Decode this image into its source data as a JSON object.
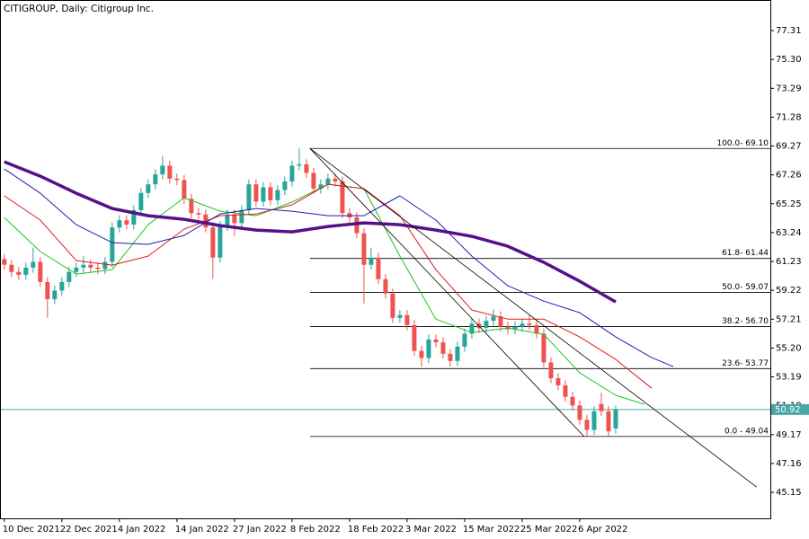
{
  "chart_data": {
    "type": "candlestick",
    "title": "CITIGROUP, Daily: Citigroup Inc.",
    "categories": [
      "10 Dec 2021",
      null,
      null,
      null,
      null,
      null,
      null,
      null,
      "22 Dec 2021",
      null,
      null,
      null,
      null,
      null,
      null,
      null,
      "4 Jan 2022",
      null,
      null,
      null,
      null,
      null,
      null,
      null,
      "14 Jan 2022",
      null,
      null,
      null,
      null,
      null,
      null,
      null,
      "27 Jan 2022",
      null,
      null,
      null,
      null,
      null,
      null,
      null,
      "8 Feb 2022",
      null,
      null,
      null,
      null,
      null,
      null,
      null,
      "18 Feb 2022",
      null,
      null,
      null,
      null,
      null,
      null,
      null,
      "3 Mar 2022",
      null,
      null,
      null,
      null,
      null,
      null,
      null,
      "15 Mar 2022",
      null,
      null,
      null,
      null,
      null,
      null,
      null,
      "25 Mar 2022",
      null,
      null,
      null,
      null,
      null,
      null,
      null,
      "6 Apr 2022",
      null,
      null,
      null,
      null,
      null
    ],
    "open": [
      61.4,
      61.0,
      60.5,
      60.3,
      60.8,
      61.2,
      59.8,
      58.6,
      59.2,
      59.8,
      60.5,
      60.8,
      61.0,
      60.8,
      60.7,
      61.2,
      63.6,
      64.1,
      63.8,
      64.8,
      66.0,
      66.6,
      67.3,
      67.9,
      67.0,
      66.9,
      65.6,
      64.6,
      64.5,
      63.6,
      61.5,
      63.7,
      64.5,
      63.9,
      64.8,
      66.6,
      65.4,
      66.4,
      65.5,
      66.2,
      66.8,
      67.9,
      68.0,
      67.4,
      66.3,
      66.6,
      67.0,
      66.8,
      64.6,
      64.3,
      63.2,
      61.0,
      61.5,
      60.0,
      59.0,
      57.3,
      57.5,
      56.8,
      55.0,
      54.5,
      55.8,
      55.6,
      54.8,
      54.3,
      55.3,
      56.2,
      56.9,
      56.6,
      57.1,
      57.4,
      56.7,
      56.5,
      56.7,
      56.9,
      56.8,
      56.2,
      54.2,
      53.1,
      52.6,
      51.8,
      51.2,
      50.2,
      49.5,
      51.3,
      50.8,
      49.6
    ],
    "high": [
      61.75,
      61.35,
      60.85,
      61.15,
      62.2,
      61.55,
      60.15,
      59.55,
      60.15,
      60.85,
      61.15,
      61.6,
      61.35,
      61.15,
      61.55,
      63.95,
      64.45,
      64.45,
      65.15,
      66.35,
      66.95,
      67.65,
      68.6,
      68.25,
      67.35,
      67.25,
      65.95,
      64.95,
      64.85,
      63.95,
      64.05,
      64.85,
      64.85,
      65.15,
      66.95,
      66.95,
      66.75,
      66.75,
      66.55,
      67.15,
      68.25,
      69.1,
      68.35,
      67.75,
      66.95,
      67.35,
      67.35,
      67.15,
      64.95,
      64.65,
      63.55,
      62.2,
      61.85,
      60.35,
      59.35,
      57.85,
      57.85,
      57.15,
      55.35,
      56.15,
      56.15,
      55.95,
      55.15,
      55.65,
      56.55,
      57.25,
      57.25,
      57.45,
      57.9,
      57.75,
      57.05,
      57.05,
      57.25,
      57.5,
      57.15,
      56.55,
      54.55,
      53.45,
      52.95,
      52.15,
      51.55,
      50.55,
      51.15,
      52.1,
      51.15,
      51.2
    ],
    "low": [
      60.65,
      60.15,
      59.95,
      59.95,
      60.45,
      59.45,
      57.3,
      58.25,
      58.85,
      59.45,
      60.15,
      60.45,
      60.45,
      60.35,
      60.35,
      60.85,
      63.25,
      63.45,
      63.45,
      64.45,
      65.65,
      66.25,
      66.95,
      66.65,
      66.55,
      65.25,
      64.25,
      64.15,
      63.25,
      60.0,
      61.15,
      63.35,
      63.0,
      63.55,
      64.45,
      65.05,
      65.05,
      65.15,
      65.15,
      65.85,
      66.45,
      67.55,
      67.05,
      65.95,
      65.95,
      66.25,
      66.45,
      64.25,
      63.95,
      62.85,
      58.3,
      60.65,
      59.65,
      58.65,
      56.95,
      56.95,
      56.45,
      54.65,
      53.9,
      54.15,
      55.25,
      54.45,
      53.9,
      53.95,
      54.95,
      55.85,
      56.25,
      56.25,
      56.75,
      56.35,
      56.15,
      56.15,
      56.35,
      56.45,
      55.85,
      53.85,
      52.75,
      52.25,
      51.45,
      50.85,
      49.85,
      49.04,
      49.15,
      50.45,
      49.05,
      49.25
    ],
    "close": [
      61.0,
      60.5,
      60.3,
      60.8,
      61.2,
      59.8,
      58.6,
      59.2,
      59.8,
      60.5,
      60.8,
      61.0,
      60.8,
      60.7,
      61.2,
      63.6,
      64.1,
      63.8,
      64.8,
      66.0,
      66.6,
      67.3,
      67.9,
      67.0,
      66.9,
      65.6,
      64.6,
      64.5,
      63.6,
      61.5,
      63.7,
      64.5,
      63.9,
      64.8,
      66.6,
      65.4,
      66.4,
      65.5,
      66.2,
      66.8,
      67.9,
      68.0,
      67.4,
      66.3,
      66.6,
      67.0,
      66.8,
      64.6,
      64.3,
      63.2,
      61.0,
      61.5,
      60.0,
      59.0,
      57.3,
      57.5,
      56.8,
      55.0,
      54.5,
      55.8,
      55.6,
      54.8,
      54.3,
      55.3,
      56.2,
      56.9,
      56.6,
      57.1,
      57.4,
      56.7,
      56.5,
      56.7,
      56.9,
      56.8,
      56.2,
      54.2,
      53.1,
      52.6,
      51.8,
      51.2,
      50.2,
      49.5,
      50.8,
      50.8,
      49.4,
      50.92
    ],
    "up_color": "#26a69a",
    "down_color": "#ef5350",
    "moving_averages": [
      {
        "color": "#22c322",
        "width": 1,
        "x": [
          0,
          5,
          10,
          15,
          20,
          25,
          30,
          35,
          40,
          45,
          50,
          55,
          60,
          65,
          70,
          75,
          80,
          85,
          89
        ],
        "values": [
          64.29,
          61.92,
          60.35,
          60.66,
          63.79,
          65.67,
          64.73,
          64.42,
          65.36,
          66.61,
          66.3,
          61.6,
          57.22,
          56.28,
          56.6,
          56.16,
          53.47,
          51.91,
          51.28
        ]
      },
      {
        "color": "#e01b1b",
        "width": 1,
        "x": [
          0,
          5,
          10,
          15,
          20,
          25,
          30,
          35,
          40,
          45,
          50,
          55,
          60,
          65,
          70,
          75,
          80,
          85,
          90
        ],
        "values": [
          65.8,
          64.11,
          61.29,
          60.98,
          61.6,
          63.48,
          64.42,
          64.54,
          65.17,
          66.61,
          66.3,
          64.42,
          60.66,
          57.85,
          57.22,
          57.22,
          55.97,
          54.41,
          52.4
        ]
      },
      {
        "color": "#1f1fb0",
        "width": 1,
        "x": [
          0,
          5,
          10,
          15,
          20,
          25,
          30,
          35,
          40,
          45,
          50,
          55,
          60,
          65,
          70,
          75,
          80,
          85,
          90,
          93
        ],
        "values": [
          67.67,
          65.98,
          63.79,
          62.54,
          62.42,
          63.04,
          64.54,
          64.92,
          64.73,
          64.42,
          64.42,
          65.8,
          64.11,
          61.6,
          59.54,
          58.47,
          57.66,
          55.97,
          54.53,
          53.91
        ]
      },
      {
        "color": "#55118a",
        "width": 3.5,
        "x": [
          0,
          5,
          10,
          15,
          20,
          25,
          30,
          35,
          40,
          45,
          50,
          55,
          60,
          65,
          70,
          75,
          80,
          85
        ],
        "values": [
          68.17,
          67.17,
          65.98,
          64.92,
          64.42,
          64.17,
          63.73,
          63.42,
          63.29,
          63.67,
          63.92,
          63.79,
          63.42,
          62.98,
          62.29,
          61.17,
          59.85,
          58.41
        ]
      }
    ],
    "trendlines": [
      {
        "x": [
          42.5,
          80.6
        ],
        "values": [
          69.1,
          49.04
        ]
      },
      {
        "x": [
          42.5,
          104.6
        ],
        "values": [
          69.1,
          45.52
        ]
      }
    ],
    "fib_levels": [
      {
        "label": "100.0- 69.10",
        "value": 69.1
      },
      {
        "label": "61.8- 61.44",
        "value": 61.44
      },
      {
        "label": "50.0- 59.07",
        "value": 59.07
      },
      {
        "label": "38.2- 56.70",
        "value": 56.7
      },
      {
        "label": "23.6- 53.77",
        "value": 53.77
      },
      {
        "label": "0.0 - 49.04",
        "value": 49.04
      }
    ],
    "last_price": 50.92,
    "xlim": [
      -0.6,
      106.5
    ],
    "ylim": [
      43.34,
      79.44
    ],
    "yticks": [
      77.31,
      {
        "value": 75.3,
        "label": "75.30"
      },
      73.29,
      71.28,
      69.27,
      67.26,
      65.25,
      63.24,
      61.23,
      59.22,
      57.21,
      {
        "value": 55.2,
        "label": "55.20"
      },
      53.19,
      51.18,
      49.17,
      47.16,
      45.15
    ],
    "grid": false
  }
}
